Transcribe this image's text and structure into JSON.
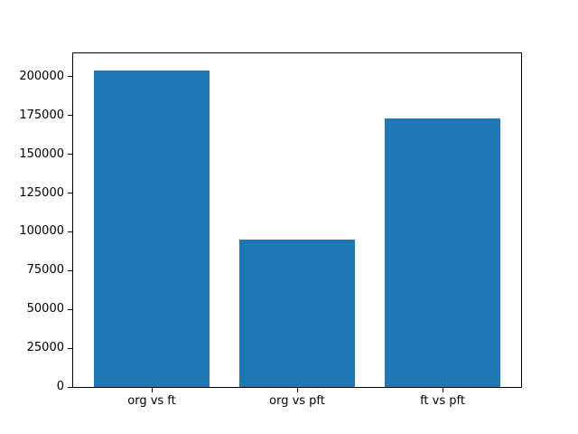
{
  "chart_data": {
    "type": "bar",
    "categories": [
      "org vs ft",
      "org vs pft",
      "ft vs pft"
    ],
    "values": [
      204000,
      95000,
      173000
    ],
    "title": "",
    "xlabel": "",
    "ylabel": "",
    "ylim": [
      0,
      215000
    ],
    "yticks": [
      0,
      25000,
      50000,
      75000,
      100000,
      125000,
      150000,
      175000,
      200000
    ],
    "ytick_labels": [
      "0",
      "25000",
      "50000",
      "75000",
      "100000",
      "125000",
      "150000",
      "175000",
      "200000"
    ],
    "bar_color": "#1f77b4",
    "axis_color": "#000000",
    "background_color": "#ffffff",
    "grid": false,
    "legend": false,
    "bar_width_fraction": 0.8,
    "x_units_span": 3.08,
    "x_first_center_offset": 0.54
  }
}
